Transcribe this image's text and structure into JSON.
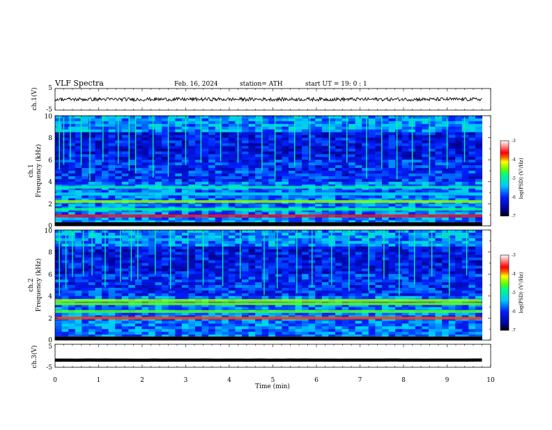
{
  "header": {
    "title": "VLF  Spectra",
    "date": "Feb. 16, 2024",
    "station": "station= ATH",
    "start": "start  UT  =    19: 0   : 1"
  },
  "chart_data": [
    {
      "type": "line",
      "panel": "ch1-waveform",
      "ylabel": "ch.1(V)",
      "ylim": [
        -5,
        5
      ],
      "y_ticks": [
        "5",
        "-5"
      ],
      "xlim": [
        0,
        10
      ],
      "trace_level_mean": 0,
      "trace_fluctuation": 0.8,
      "trace_end_x": 9.8
    },
    {
      "type": "heatmap",
      "panel": "ch1-spectrogram",
      "ylabel_line1": "ch.1",
      "ylabel_line2": "Frequency  (kHz)",
      "ylim": [
        0,
        10
      ],
      "y_ticks": [
        "0",
        "2",
        "4",
        "6",
        "8",
        "10"
      ],
      "xlim": [
        0,
        10
      ],
      "x_end": 9.8,
      "colorbar": {
        "label": "log(PSD) (V²/Hz)",
        "range": [
          -7,
          -3
        ],
        "ticks": [
          "-3",
          "-4",
          "-5",
          "-6",
          "-7"
        ]
      },
      "bands_khz": [
        {
          "freq": 0.2,
          "level": -3.2
        },
        {
          "freq": 0.9,
          "level": -3.6
        },
        {
          "freq": 1.5,
          "level": -4.8
        },
        {
          "freq": 2.2,
          "level": -4.4
        },
        {
          "freq": 2.9,
          "level": -5.3
        },
        {
          "freq": 3.5,
          "level": -5.0
        }
      ],
      "sferic_times_min": [
        0.1,
        0.2,
        0.35,
        0.6,
        0.8,
        1.1,
        1.45,
        1.7,
        1.85,
        2.25,
        2.6,
        3.0,
        3.35,
        3.8,
        4.2,
        4.75,
        5.05,
        5.5,
        5.85,
        6.3,
        6.7,
        7.15,
        7.5,
        7.85,
        8.2,
        8.6,
        9.0,
        9.4
      ]
    },
    {
      "type": "heatmap",
      "panel": "ch2-spectrogram",
      "ylabel_line1": "ch.2",
      "ylabel_line2": "Frequency  (kHz)",
      "ylim": [
        0,
        10
      ],
      "y_ticks": [
        "0",
        "2",
        "4",
        "6",
        "8",
        "10"
      ],
      "xlim": [
        0,
        10
      ],
      "x_end": 9.8,
      "colorbar": {
        "label": "log(PSD) (V²/Hz)",
        "range": [
          -7,
          -3
        ],
        "ticks": [
          "-3",
          "-4",
          "-5",
          "-6",
          "-7"
        ]
      },
      "bands_khz": [
        {
          "freq": 0.2,
          "level": -3.3
        },
        {
          "freq": 2.0,
          "level": -3.8
        },
        {
          "freq": 2.6,
          "level": -4.6
        },
        {
          "freq": 3.3,
          "level": -4.5
        },
        {
          "freq": 3.6,
          "level": -4.4
        }
      ],
      "sferic_times_min": [
        0.1,
        0.25,
        0.4,
        0.65,
        0.85,
        1.15,
        1.5,
        1.75,
        1.9,
        2.3,
        2.65,
        3.05,
        3.4,
        3.85,
        4.25,
        4.8,
        5.1,
        5.55,
        5.9,
        6.35,
        6.75,
        7.2,
        7.55,
        7.9,
        8.25,
        8.65,
        9.05,
        9.45
      ]
    },
    {
      "type": "line",
      "panel": "ch3-waveform",
      "ylabel": "ch.3(V)",
      "ylim": [
        -5,
        5
      ],
      "y_ticks": [
        "5",
        "-5"
      ],
      "xlim": [
        0,
        10
      ],
      "trace_level_mean": -1.9,
      "trace_fluctuation": 0.05,
      "trace_end_x": 9.8
    }
  ],
  "x_axis": {
    "label": "Time  (min)",
    "ticks": [
      "0",
      "1",
      "2",
      "3",
      "4",
      "5",
      "6",
      "7",
      "8",
      "9",
      "10"
    ]
  }
}
